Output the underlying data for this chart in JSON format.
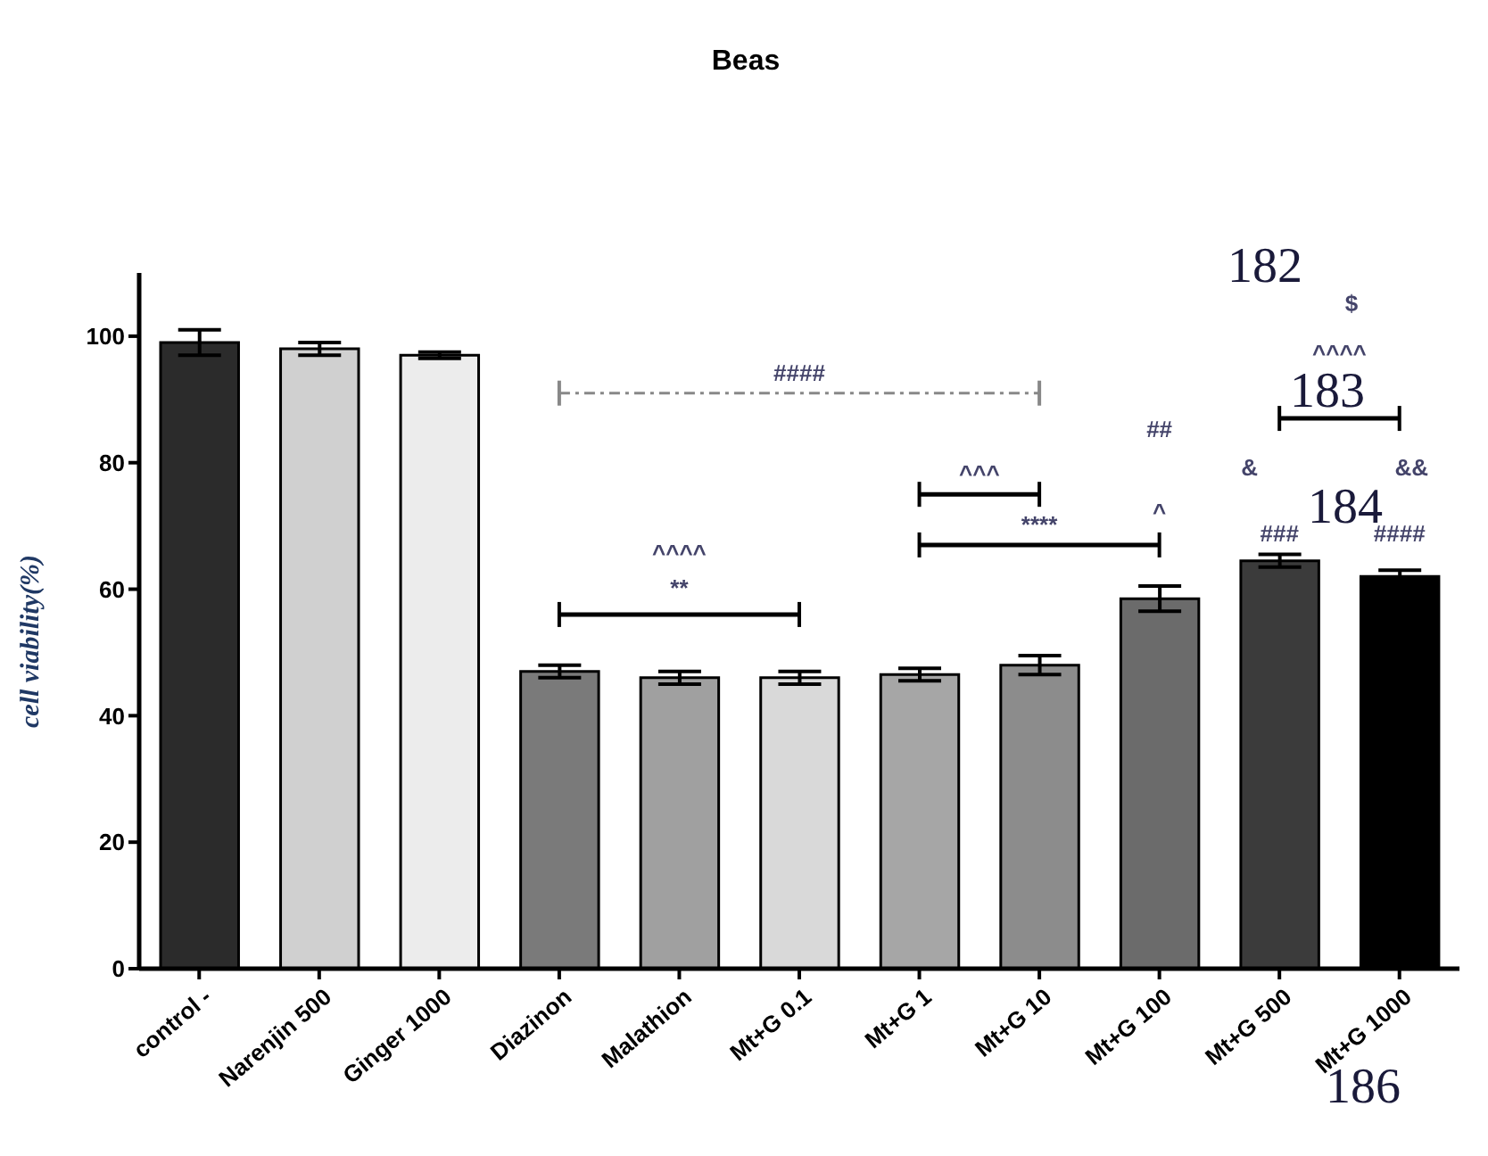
{
  "chart_data": {
    "type": "bar",
    "title": "Beas",
    "ylabel": "cell viability(%)",
    "categories": [
      "control -",
      "Narenjin 500",
      "Ginger 1000",
      "Diazinon",
      "Malathion",
      "Mt+G 0.1",
      "Mt+G 1",
      "Mt+G 10",
      "Mt+G 100",
      "Mt+G 500",
      "Mt+G 1000"
    ],
    "values": [
      99,
      98,
      97,
      47,
      46,
      46,
      46.5,
      48,
      58.5,
      64.5,
      62
    ],
    "errors": [
      2,
      1,
      0.5,
      1,
      1,
      1,
      1,
      1.5,
      2,
      1,
      1
    ],
    "colors": [
      "#2b2b2b",
      "#d0d0d0",
      "#ececec",
      "#7a7a7a",
      "#a0a0a0",
      "#d9d9d9",
      "#a6a6a6",
      "#8c8c8c",
      "#6b6b6b",
      "#3b3b3b",
      "#000000"
    ],
    "ylim": [
      0,
      110
    ],
    "yticks": [
      0,
      20,
      40,
      60,
      80,
      100
    ],
    "annotations": [
      "####",
      "^^^^",
      "**",
      "^^^",
      "****",
      "##",
      "^",
      "$",
      "^^^^",
      "&",
      "&&",
      "###",
      "####",
      "182",
      "183",
      "184",
      "186"
    ]
  }
}
